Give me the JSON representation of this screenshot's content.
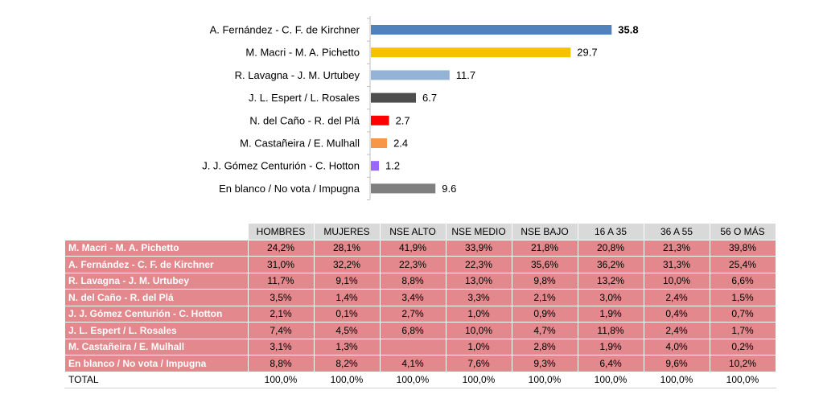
{
  "chart_data": [
    {
      "type": "bar",
      "orientation": "horizontal",
      "categories": [
        "A. Fernández - C. F. de Kirchner",
        "M. Macri - M. A. Pichetto",
        "R. Lavagna - J. M. Urtubey",
        "J. L. Espert / L. Rosales",
        "N. del Caño - R. del Plá",
        "M. Castañeira / E. Mulhall",
        "J. J. Gómez Centurión - C. Hotton",
        "En blanco / No vota / Impugna"
      ],
      "values": [
        35.8,
        29.7,
        11.7,
        6.7,
        2.7,
        2.4,
        1.2,
        9.6
      ],
      "value_labels": [
        "35.8",
        "29.7",
        "11.7",
        "6.7",
        "2.7",
        "2.4",
        "1.2",
        "9.6"
      ],
      "colors": [
        "#4f81bd",
        "#f7c100",
        "#95b3d7",
        "#4d4d4d",
        "#ff0000",
        "#f79646",
        "#9966ff",
        "#7f7f7f"
      ],
      "highlight_index": 0,
      "xlim": [
        0,
        40
      ],
      "grid": false,
      "legend": "none"
    },
    {
      "type": "table",
      "columns": [
        "HOMBRES",
        "MUJERES",
        "NSE ALTO",
        "NSE MEDIO",
        "NSE BAJO",
        "16 A 35",
        "36 A 55",
        "56 O MÁS"
      ],
      "rows": [
        {
          "label": "M. Macri - M. A. Pichetto",
          "values": [
            "24,2%",
            "28,1%",
            "41,9%",
            "33,9%",
            "21,8%",
            "20,8%",
            "21,3%",
            "39,8%"
          ]
        },
        {
          "label": "A. Fernández - C. F. de Kirchner",
          "values": [
            "31,0%",
            "32,2%",
            "22,3%",
            "22,3%",
            "35,6%",
            "36,2%",
            "31,3%",
            "25,4%"
          ]
        },
        {
          "label": "R. Lavagna - J. M. Urtubey",
          "values": [
            "11,7%",
            "9,1%",
            "8,8%",
            "13,0%",
            "9,8%",
            "13,2%",
            "10,0%",
            "6,6%"
          ]
        },
        {
          "label": "N. del Caño - R. del Plá",
          "values": [
            "3,5%",
            "1,4%",
            "3,4%",
            "3,3%",
            "2,1%",
            "3,0%",
            "2,4%",
            "1,5%"
          ]
        },
        {
          "label": "J. J. Gómez Centurión - C. Hotton",
          "values": [
            "2,1%",
            "0,1%",
            "2,7%",
            "1,0%",
            "0,9%",
            "1,9%",
            "0,4%",
            "0,7%"
          ]
        },
        {
          "label": "J. L. Espert / L. Rosales",
          "values": [
            "7,4%",
            "4,5%",
            "6,8%",
            "10,0%",
            "4,7%",
            "11,8%",
            "2,4%",
            "1,7%"
          ]
        },
        {
          "label": "M. Castañeira / E. Mulhall",
          "values": [
            "3,1%",
            "1,3%",
            "",
            "1,0%",
            "2,8%",
            "1,9%",
            "4,0%",
            "0,2%"
          ]
        },
        {
          "label": "En blanco / No vota / Impugna",
          "values": [
            "8,8%",
            "8,2%",
            "4,1%",
            "7,6%",
            "9,3%",
            "6,4%",
            "9,6%",
            "10,2%"
          ]
        }
      ],
      "total": {
        "label": "TOTAL",
        "values": [
          "100,0%",
          "100,0%",
          "100,0%",
          "100,0%",
          "100,0%",
          "100,0%",
          "100,0%",
          "100,0%"
        ]
      },
      "colors": {
        "header_bg": "#d9d9d9",
        "row_bg": "#e3888c",
        "row_label_text": "#ffffff"
      }
    }
  ]
}
